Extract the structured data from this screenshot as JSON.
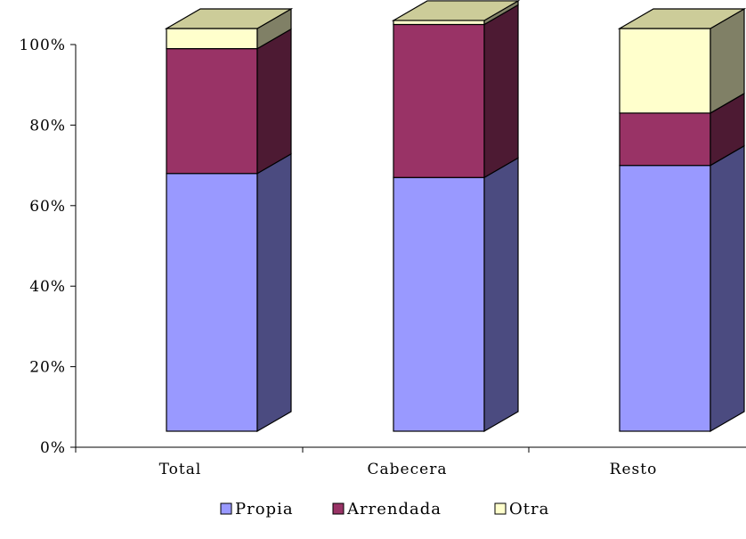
{
  "chart_data": {
    "type": "bar",
    "stacked": true,
    "percent_stacked": true,
    "three_d": true,
    "categories": [
      "Total",
      "Cabecera",
      "Resto"
    ],
    "series": [
      {
        "name": "Propia",
        "values": [
          64,
          63,
          66
        ],
        "color": "#9999ff",
        "side_color": "#4b4b80",
        "top_color": "#c4c4ff"
      },
      {
        "name": "Arrendada",
        "values": [
          31,
          38,
          13
        ],
        "color": "#993366",
        "side_color": "#4d1a33",
        "top_color": "#c46a93"
      },
      {
        "name": "Otra",
        "values": [
          5,
          1,
          21
        ],
        "color": "#ffffcc",
        "side_color": "#808066",
        "top_color": "#cccc99"
      }
    ],
    "y_ticks": [
      "0%",
      "20%",
      "40%",
      "60%",
      "80%",
      "100%"
    ],
    "ylim": [
      0,
      100
    ],
    "grid": false,
    "legend_position": "bottom"
  }
}
